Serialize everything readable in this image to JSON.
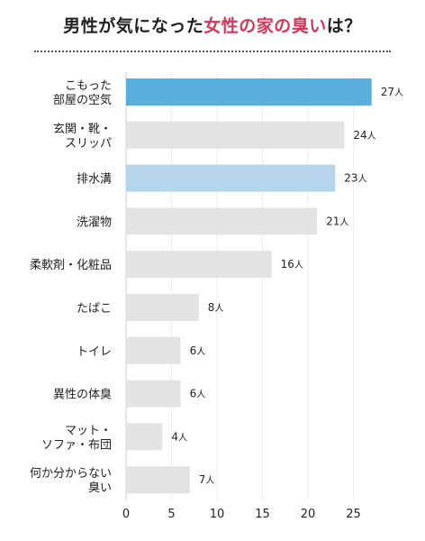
{
  "title": {
    "prefix": "男性が気になった",
    "highlight": "女性の家の臭い",
    "suffix": "は？"
  },
  "colors": {
    "title_highlight": "#d3375a",
    "bar_default": "#e3e3e3",
    "bar_first": "#5aaedb",
    "bar_third": "#b6d5ec"
  },
  "chart_data": {
    "type": "bar",
    "orientation": "horizontal",
    "categories": [
      [
        "こもった",
        "部屋の空気"
      ],
      [
        "玄関・靴・",
        "スリッパ"
      ],
      [
        "排水溝"
      ],
      [
        "洗濯物"
      ],
      [
        "柔軟剤・化粧品"
      ],
      [
        "たばこ"
      ],
      [
        "トイレ"
      ],
      [
        "異性の体臭"
      ],
      [
        "マット・",
        "ソファ・布団"
      ],
      [
        "何か分からない",
        "臭い"
      ]
    ],
    "values": [
      27,
      24,
      23,
      21,
      16,
      8,
      6,
      6,
      4,
      7
    ],
    "value_unit": "人",
    "xlim": [
      0,
      27
    ],
    "xticks": [
      0,
      5,
      10,
      15,
      20,
      25
    ],
    "title": "男性が気になった女性の家の臭いは？",
    "xlabel": "",
    "ylabel": "",
    "grid": true,
    "legend": "none"
  }
}
